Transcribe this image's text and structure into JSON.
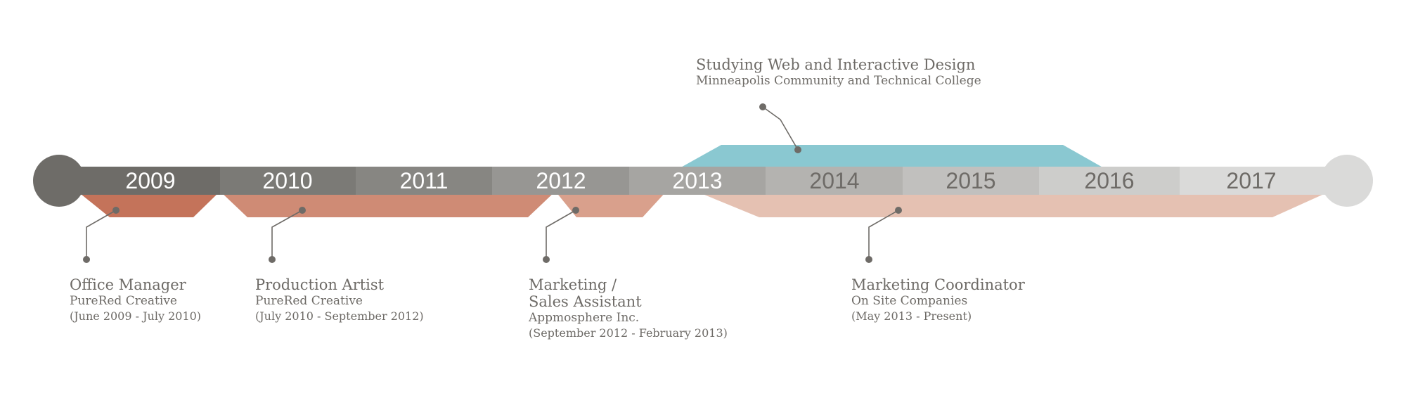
{
  "colors": {
    "connector": "#6e6b67",
    "education_band": "#8ac8d1",
    "job_bands": [
      "#c4735a",
      "#cf8b75",
      "#d9a08c",
      "#e5c1b2"
    ],
    "year_segments": [
      "#6e6c68",
      "#7b7a76",
      "#878682",
      "#979693",
      "#a6a5a2",
      "#b4b3b0",
      "#c1c0be",
      "#cdcdcb",
      "#dadad9"
    ],
    "year_text_light": "#ffffff",
    "year_text_dark": "#6e6b67"
  },
  "years": [
    "2009",
    "2010",
    "2011",
    "2012",
    "2013",
    "2014",
    "2015",
    "2016",
    "2017"
  ],
  "education": {
    "title": "Studying Web and Interactive Design",
    "org": "Minneapolis Community and Technical College"
  },
  "jobs": [
    {
      "title": "Office Manager",
      "org": "PureRed Creative",
      "dates": "(June 2009 - July 2010)"
    },
    {
      "title": "Production Artist",
      "org": "PureRed Creative",
      "dates": "(July 2010 - September 2012)"
    },
    {
      "title_lines": [
        "Marketing /",
        "Sales Assistant"
      ],
      "org": "Appmosphere Inc.",
      "dates": "(September 2012 - February 2013)"
    },
    {
      "title": "Marketing Coordinator",
      "org": "On Site Companies",
      "dates": "(May 2013 - Present)"
    }
  ]
}
